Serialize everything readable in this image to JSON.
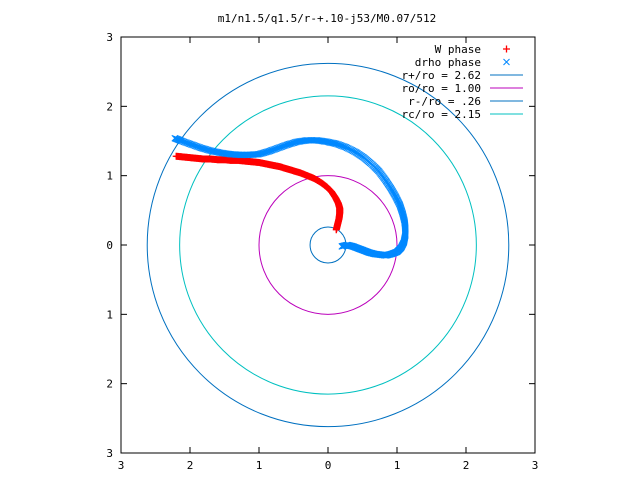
{
  "chart_data": {
    "type": "scatter",
    "title": "m1/n1.5/q1.5/r-+.10-j53/M0.07/512",
    "xlim": [
      -3,
      3
    ],
    "ylim": [
      -3,
      3
    ],
    "grid": false,
    "legend_position": "top-right",
    "x_ticks": [
      {
        "value": -3,
        "label": "3"
      },
      {
        "value": -2,
        "label": "2"
      },
      {
        "value": -1,
        "label": "1"
      },
      {
        "value": 0,
        "label": "0"
      },
      {
        "value": 1,
        "label": "1"
      },
      {
        "value": 2,
        "label": "2"
      },
      {
        "value": 3,
        "label": "3"
      }
    ],
    "y_ticks": [
      {
        "value": -3,
        "label": "3"
      },
      {
        "value": -2,
        "label": "2"
      },
      {
        "value": -1,
        "label": "1"
      },
      {
        "value": 0,
        "label": "0"
      },
      {
        "value": 1,
        "label": "1"
      },
      {
        "value": 2,
        "label": "2"
      },
      {
        "value": 3,
        "label": "3"
      }
    ],
    "series": [
      {
        "name": "W phase",
        "marker": "plus",
        "color": "#ff0000",
        "points": [
          [
            0.12,
            0.22
          ],
          [
            0.14,
            0.3
          ],
          [
            0.16,
            0.38
          ],
          [
            0.17,
            0.46
          ],
          [
            0.17,
            0.53
          ],
          [
            0.15,
            0.6
          ],
          [
            0.11,
            0.68
          ],
          [
            0.05,
            0.77
          ],
          [
            -0.02,
            0.84
          ],
          [
            -0.1,
            0.9
          ],
          [
            -0.2,
            0.96
          ],
          [
            -0.3,
            1.0
          ],
          [
            -0.4,
            1.04
          ],
          [
            -0.5,
            1.07
          ],
          [
            -0.6,
            1.1
          ],
          [
            -0.7,
            1.13
          ],
          [
            -0.8,
            1.15
          ],
          [
            -0.9,
            1.17
          ],
          [
            -1.0,
            1.19
          ],
          [
            -1.1,
            1.2
          ],
          [
            -1.2,
            1.21
          ],
          [
            -1.3,
            1.22
          ],
          [
            -1.4,
            1.22
          ],
          [
            -1.5,
            1.23
          ],
          [
            -1.6,
            1.23
          ],
          [
            -1.7,
            1.24
          ],
          [
            -1.8,
            1.24
          ],
          [
            -1.9,
            1.25
          ],
          [
            -2.0,
            1.26
          ],
          [
            -2.1,
            1.27
          ],
          [
            -2.2,
            1.28
          ]
        ]
      },
      {
        "name": "drho phase",
        "marker": "cross",
        "color": "#0088ff",
        "points": [
          [
            0.2,
            -0.02
          ],
          [
            0.28,
            0.0
          ],
          [
            0.36,
            -0.02
          ],
          [
            0.44,
            -0.05
          ],
          [
            0.52,
            -0.08
          ],
          [
            0.6,
            -0.11
          ],
          [
            0.68,
            -0.13
          ],
          [
            0.76,
            -0.14
          ],
          [
            0.84,
            -0.15
          ],
          [
            0.92,
            -0.13
          ],
          [
            1.0,
            -0.1
          ],
          [
            1.06,
            -0.04
          ],
          [
            1.1,
            0.04
          ],
          [
            1.12,
            0.14
          ],
          [
            1.12,
            0.24
          ],
          [
            1.11,
            0.34
          ],
          [
            1.08,
            0.46
          ],
          [
            1.04,
            0.58
          ],
          [
            0.98,
            0.7
          ],
          [
            0.91,
            0.82
          ],
          [
            0.83,
            0.94
          ],
          [
            0.74,
            1.06
          ],
          [
            0.64,
            1.16
          ],
          [
            0.52,
            1.26
          ],
          [
            0.4,
            1.34
          ],
          [
            0.26,
            1.41
          ],
          [
            0.12,
            1.46
          ],
          [
            -0.02,
            1.49
          ],
          [
            -0.16,
            1.51
          ],
          [
            -0.3,
            1.51
          ],
          [
            -0.44,
            1.49
          ],
          [
            -0.58,
            1.45
          ],
          [
            -0.72,
            1.4
          ],
          [
            -0.86,
            1.35
          ],
          [
            -1.0,
            1.31
          ],
          [
            -1.14,
            1.3
          ],
          [
            -1.28,
            1.3
          ],
          [
            -1.42,
            1.31
          ],
          [
            -1.56,
            1.33
          ],
          [
            -1.7,
            1.36
          ],
          [
            -1.84,
            1.4
          ],
          [
            -1.98,
            1.45
          ],
          [
            -2.12,
            1.5
          ],
          [
            -2.22,
            1.54
          ]
        ]
      }
    ],
    "circles": [
      {
        "name": "r+/ro = 2.62",
        "radius": 2.62,
        "color": "#0070c0"
      },
      {
        "name": "ro/ro = 1.00",
        "radius": 1.0,
        "color": "#bb00bb"
      },
      {
        "name": "r-/ro = .26",
        "radius": 0.26,
        "color": "#0070c0"
      },
      {
        "name": "rc/ro = 2.15",
        "radius": 2.15,
        "color": "#00c0c0"
      }
    ]
  }
}
